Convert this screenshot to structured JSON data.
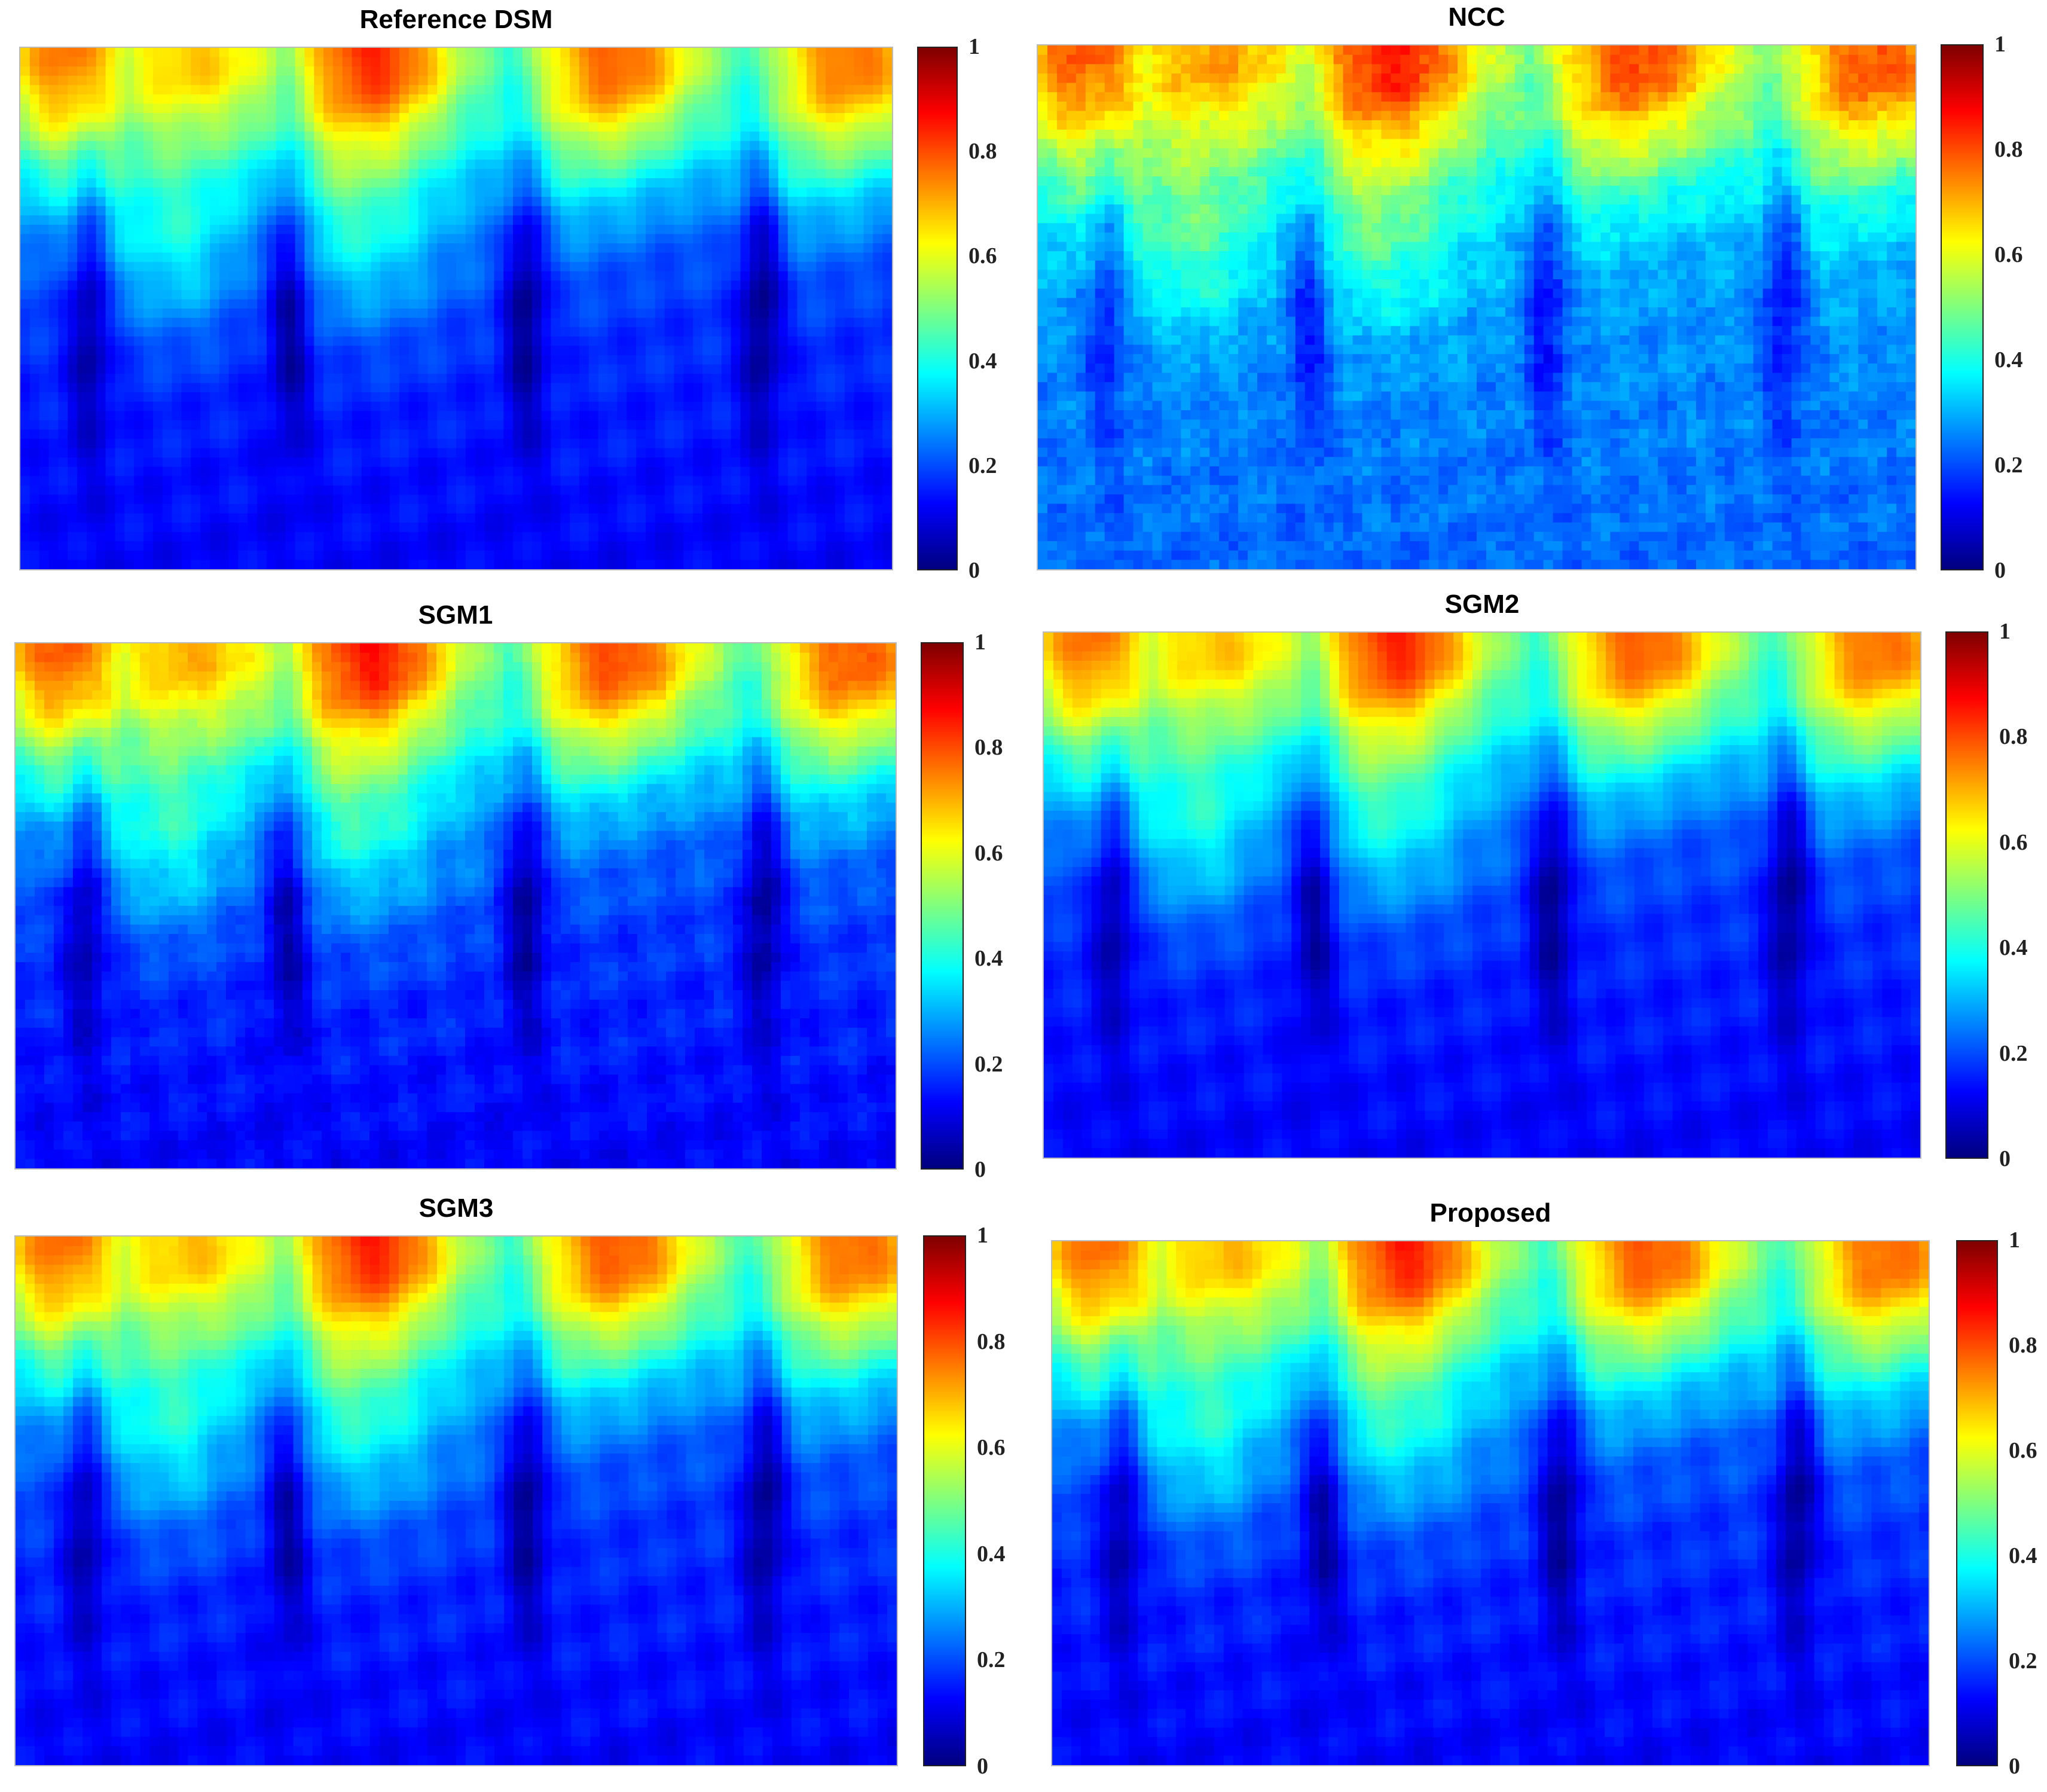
{
  "chart_data": [
    {
      "type": "heatmap",
      "title": "Reference DSM",
      "colormap": "jet",
      "clim": [
        0,
        1
      ],
      "colorbar_ticks": [
        "0",
        "0.2",
        "0.4",
        "0.6",
        "0.8",
        "1"
      ],
      "noise": 0
    },
    {
      "type": "heatmap",
      "title": "NCC",
      "colormap": "jet",
      "clim": [
        0,
        1
      ],
      "colorbar_ticks": [
        "0",
        "0.2",
        "0.4",
        "0.6",
        "0.8",
        "1"
      ],
      "noise": 1
    },
    {
      "type": "heatmap",
      "title": "SGM1",
      "colormap": "jet",
      "clim": [
        0,
        1
      ],
      "colorbar_ticks": [
        "0",
        "0.2",
        "0.4",
        "0.6",
        "0.8",
        "1"
      ],
      "noise": 0.4
    },
    {
      "type": "heatmap",
      "title": "SGM2",
      "colormap": "jet",
      "clim": [
        0,
        1
      ],
      "colorbar_ticks": [
        "0",
        "0.2",
        "0.4",
        "0.6",
        "0.8",
        "1"
      ],
      "noise": 0.1
    },
    {
      "type": "heatmap",
      "title": "SGM3",
      "colormap": "jet",
      "clim": [
        0,
        1
      ],
      "colorbar_ticks": [
        "0",
        "0.2",
        "0.4",
        "0.6",
        "0.8",
        "1"
      ],
      "noise": 0.15
    },
    {
      "type": "heatmap",
      "title": "Proposed",
      "colormap": "jet",
      "clim": [
        0,
        1
      ],
      "colorbar_ticks": [
        "0",
        "0.2",
        "0.4",
        "0.6",
        "0.8",
        "1"
      ],
      "noise": 0.2
    }
  ]
}
